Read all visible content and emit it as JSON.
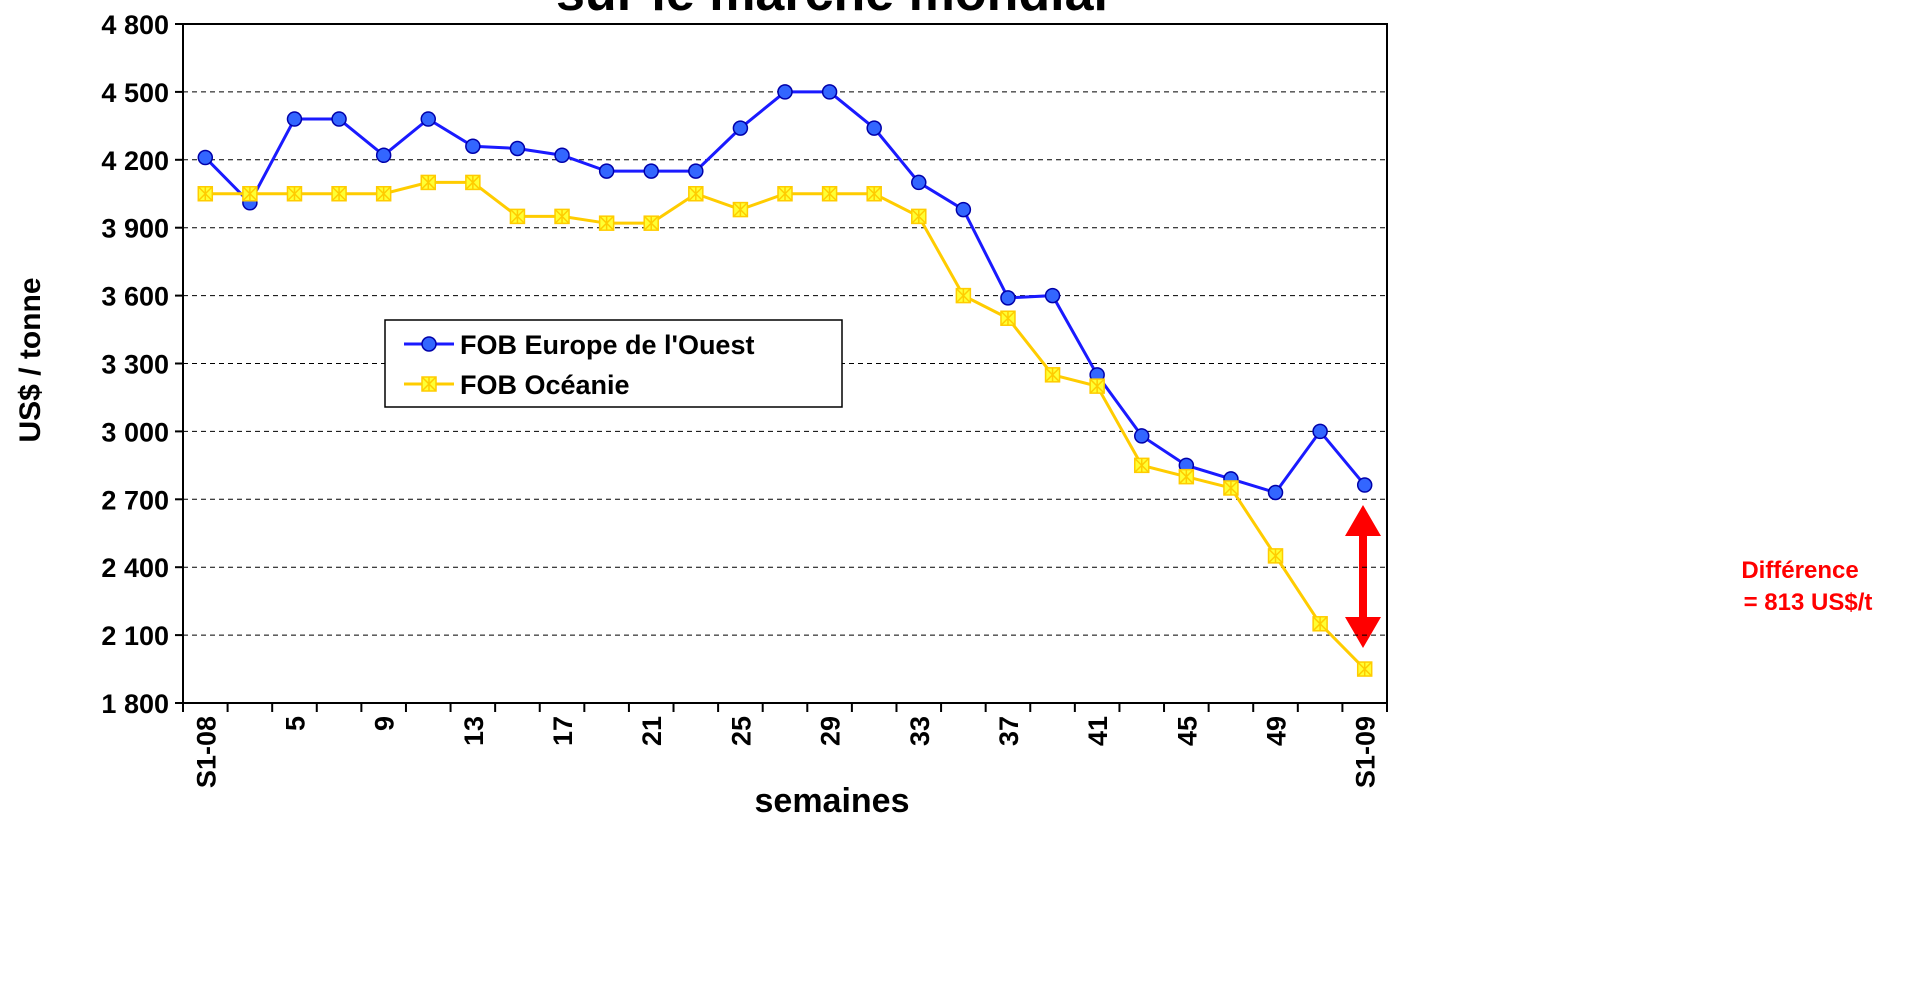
{
  "chart_data": {
    "type": "line",
    "title": "sur le marché mondial",
    "xlabel": "semaines",
    "ylabel": "US$ / tonne",
    "categories": [
      "S1-08",
      null,
      "5",
      null,
      "9",
      null,
      "13",
      null,
      "17",
      null,
      "21",
      null,
      "25",
      null,
      "29",
      null,
      "33",
      null,
      "37",
      null,
      "41",
      null,
      "45",
      null,
      "49",
      null,
      "S1-09"
    ],
    "series": [
      {
        "name": "FOB Europe de l'Ouest",
        "color": "#1a1aff",
        "values": [
          4210,
          4010,
          4380,
          4380,
          4220,
          4380,
          4260,
          4250,
          4220,
          4150,
          4150,
          4150,
          4340,
          4500,
          4500,
          4340,
          4100,
          3980,
          3590,
          3600,
          3250,
          2980,
          2850,
          2790,
          2730,
          3000,
          2763
        ]
      },
      {
        "name": "FOB Océanie",
        "color": "#ffcc00",
        "values": [
          4050,
          4050,
          4050,
          4050,
          4050,
          4100,
          4100,
          3950,
          3950,
          3920,
          3920,
          4050,
          3980,
          4050,
          4050,
          4050,
          3950,
          3600,
          3500,
          3250,
          3200,
          2850,
          2800,
          2750,
          2450,
          2150,
          1950
        ]
      }
    ],
    "ylim": [
      1800,
      4800
    ],
    "yticks": [
      {
        "value": 1800,
        "label": "1 800"
      },
      {
        "value": 2100,
        "label": "2 100"
      },
      {
        "value": 2400,
        "label": "2 400"
      },
      {
        "value": 2700,
        "label": "2 700"
      },
      {
        "value": 3000,
        "label": "3 000"
      },
      {
        "value": 3300,
        "label": "3 300"
      },
      {
        "value": 3600,
        "label": "3 600"
      },
      {
        "value": 3900,
        "label": "3 900"
      },
      {
        "value": 4200,
        "label": "4 200"
      },
      {
        "value": 4500,
        "label": "4 500"
      },
      {
        "value": 4800,
        "label": "4 800"
      }
    ],
    "grid": true,
    "annotations": [
      "Différence",
      "= 813 US$/t"
    ]
  }
}
